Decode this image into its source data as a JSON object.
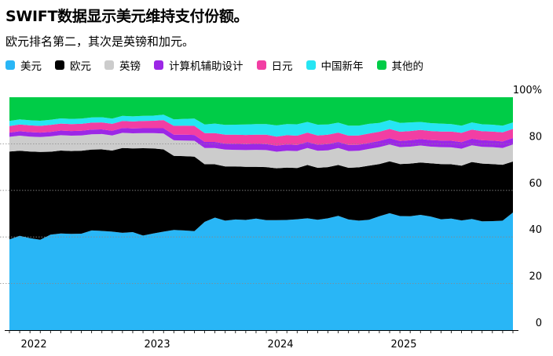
{
  "chart_data": {
    "type": "area",
    "stacked": true,
    "title": "SWIFT数据显示美元维持支付份额。",
    "subtitle": "欧元排名第二，其次是英镑和加元。",
    "xlabel": "",
    "ylabel": "",
    "ylim": [
      0,
      100
    ],
    "yticks": [
      0,
      20,
      40,
      60,
      80,
      100
    ],
    "ytick_labels": [
      "0",
      "20",
      "40",
      "60",
      "80",
      "100%"
    ],
    "x_tick_labels": [
      "2022",
      "2023",
      "2024",
      "2025"
    ],
    "x_tick_positions": [
      1,
      13,
      25,
      37
    ],
    "grid": true,
    "x": [
      "2021-11",
      "2021-12",
      "2022-01",
      "2022-02",
      "2022-03",
      "2022-04",
      "2022-05",
      "2022-06",
      "2022-07",
      "2022-08",
      "2022-09",
      "2022-10",
      "2022-11",
      "2022-12",
      "2023-01",
      "2023-02",
      "2023-03",
      "2023-04",
      "2023-05",
      "2023-06",
      "2023-07",
      "2023-08",
      "2023-09",
      "2023-10",
      "2023-11",
      "2023-12",
      "2024-01",
      "2024-02",
      "2024-03",
      "2024-04",
      "2024-05",
      "2024-06",
      "2024-07",
      "2024-08",
      "2024-09",
      "2024-10",
      "2024-11",
      "2024-12",
      "2025-01",
      "2025-02",
      "2025-03",
      "2025-04",
      "2025-05",
      "2025-06",
      "2025-07",
      "2025-08",
      "2025-09",
      "2025-10",
      "2025-11",
      "2025-12"
    ],
    "series": [
      {
        "name": "美元",
        "color": "#29b6f6",
        "values": [
          39,
          40.5,
          39.5,
          38.8,
          41,
          41.5,
          41.3,
          41.4,
          42.8,
          42.6,
          42.3,
          41.8,
          42.1,
          40.6,
          41.5,
          42.3,
          43,
          42.8,
          42.5,
          46.5,
          48.3,
          47,
          47.5,
          47.3,
          47.9,
          47.2,
          47.2,
          47.3,
          47.6,
          48,
          47.4,
          48,
          49.1,
          47.5,
          47,
          47.4,
          48.9,
          50.2,
          49,
          48.9,
          49.5,
          48.8,
          47.6,
          47.9,
          47.1,
          47.7,
          46.7,
          46.8,
          47,
          50.5
        ]
      },
      {
        "name": "欧元",
        "color": "#000000",
        "values": [
          37.7,
          36.5,
          37.2,
          37.7,
          35.6,
          35.6,
          35.6,
          35.6,
          34.7,
          35,
          34.8,
          36.4,
          35.9,
          37.5,
          36.5,
          35.3,
          31.8,
          31.9,
          32,
          24.7,
          22.9,
          23.3,
          22.8,
          22.8,
          22.2,
          22.8,
          22.3,
          22.5,
          22,
          22.9,
          22.3,
          22,
          21.8,
          22.2,
          22.9,
          23.2,
          22.4,
          22.3,
          22.3,
          22.6,
          22.5,
          22.8,
          23.7,
          23.3,
          23.5,
          24.5,
          24.8,
          24.5,
          24,
          21.9
        ]
      },
      {
        "name": "英镑",
        "color": "#cccccc",
        "values": [
          6.3,
          6.5,
          6.4,
          6.4,
          6.6,
          6.6,
          6.6,
          6.6,
          6.6,
          6.6,
          6.5,
          6.5,
          6.5,
          6.5,
          6.6,
          6.8,
          6.7,
          6.7,
          6.8,
          7,
          7,
          7.2,
          7.1,
          7.2,
          7.3,
          7.3,
          7.1,
          7.2,
          7.3,
          7.3,
          7.3,
          7.2,
          7.3,
          7.2,
          7.1,
          7.2,
          7.3,
          7.2,
          7.3,
          7.3,
          7.3,
          7.2,
          7.3,
          7.3,
          7.3,
          7.2,
          7.2,
          7.3,
          7.2,
          7.3
        ]
      },
      {
        "name": "计算机辅助设计",
        "color": "#9c27e6",
        "values": [
          1.8,
          1.9,
          1.9,
          1.9,
          1.9,
          2,
          2,
          2,
          2,
          2,
          2,
          2.1,
          2.1,
          2.1,
          2.1,
          2.3,
          2.4,
          2.5,
          2.5,
          2.6,
          2.6,
          2.6,
          2.6,
          2.6,
          2.6,
          2.6,
          2.6,
          2.7,
          2.6,
          2.6,
          2.6,
          2.7,
          2.6,
          2.6,
          2.6,
          2.6,
          2.6,
          2.7,
          2.6,
          2.7,
          2.8,
          2.8,
          2.8,
          2.8,
          2.8,
          2.8,
          2.8,
          2.8,
          2.8,
          2.8
        ]
      },
      {
        "name": "日元",
        "color": "#f23ea3",
        "values": [
          2.8,
          2.9,
          2.9,
          2.9,
          3,
          3,
          3,
          3,
          3,
          3,
          3,
          3,
          3,
          3.1,
          3.2,
          3.5,
          3.8,
          3.9,
          3.9,
          3.8,
          3.8,
          3.8,
          3.9,
          3.9,
          3.9,
          4,
          3.9,
          4,
          4,
          4,
          4,
          4,
          4,
          4,
          4,
          4,
          4,
          4,
          4,
          4,
          3.9,
          3.9,
          3.9,
          4,
          4,
          3.9,
          3.9,
          3.9,
          3.9,
          3.9
        ]
      },
      {
        "name": "中国新年",
        "color": "#26e5f3",
        "values": [
          2.2,
          2.2,
          2.2,
          2.2,
          2.2,
          2.2,
          2.2,
          2.2,
          2.2,
          2.2,
          2.2,
          2.2,
          2.2,
          2.2,
          2.2,
          2.3,
          2.8,
          2.9,
          3.1,
          3.7,
          4.1,
          4.2,
          4.3,
          4.5,
          4.6,
          4.6,
          4.8,
          4.8,
          4.9,
          4.6,
          4.6,
          4.4,
          4.3,
          4.3,
          4.2,
          4.2,
          3.8,
          3.8,
          3.8,
          3.7,
          3.4,
          3.4,
          3.4,
          3.2,
          3.1,
          3.1,
          3.0,
          2.9,
          2.9,
          2.8
        ]
      },
      {
        "name": "其他的",
        "color": "#00cc47",
        "values": [
          10.2,
          9.5,
          9.9,
          10.1,
          9.7,
          9.1,
          9.3,
          9.2,
          8.7,
          8.6,
          9.2,
          8,
          8.2,
          8,
          7.9,
          7.5,
          9.5,
          9.3,
          9.2,
          11.7,
          11.3,
          11.9,
          11.8,
          11.7,
          11.5,
          11.5,
          12.1,
          11.5,
          11.6,
          10.6,
          11.8,
          11.7,
          10.9,
          12.2,
          12.2,
          11.4,
          11,
          9.8,
          11,
          10.8,
          10.6,
          11.1,
          11.3,
          11.5,
          12.2,
          10.8,
          11.6,
          11.8,
          12.2,
          10.8
        ]
      }
    ]
  }
}
